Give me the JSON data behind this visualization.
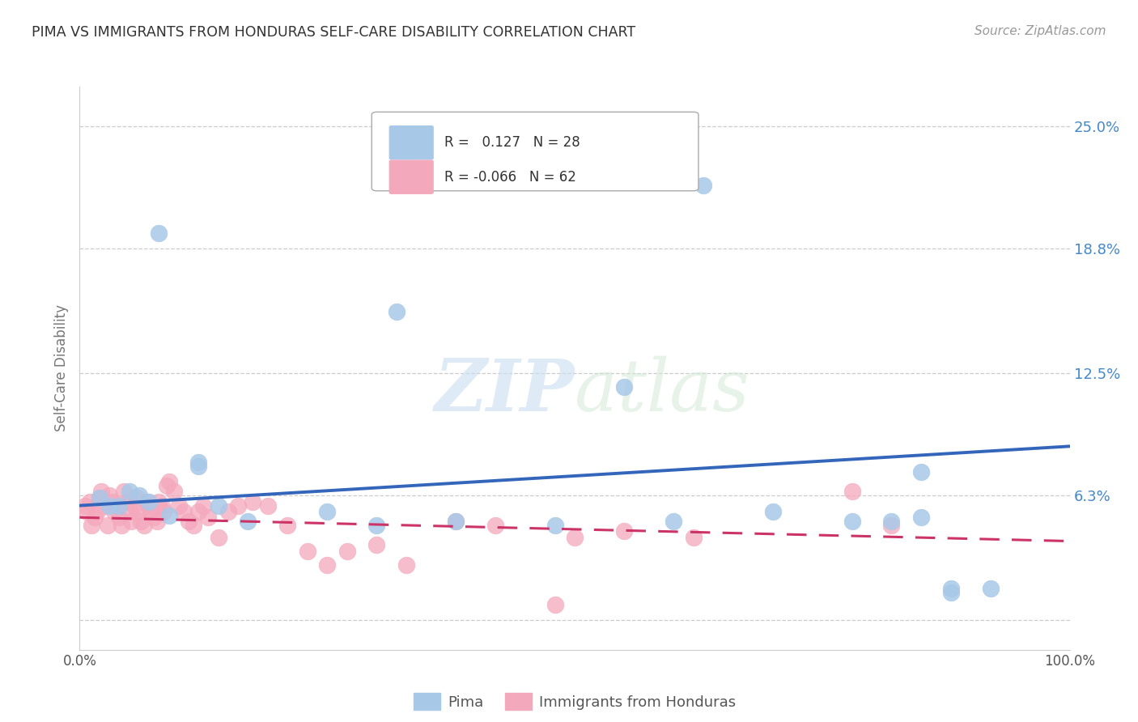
{
  "title": "PIMA VS IMMIGRANTS FROM HONDURAS SELF-CARE DISABILITY CORRELATION CHART",
  "source": "Source: ZipAtlas.com",
  "ylabel": "Self-Care Disability",
  "xlim": [
    0,
    1
  ],
  "ylim": [
    -0.015,
    0.27
  ],
  "yticks": [
    0.0,
    0.063,
    0.125,
    0.188,
    0.25
  ],
  "ytick_labels": [
    "",
    "6.3%",
    "12.5%",
    "18.8%",
    "25.0%"
  ],
  "pima_color": "#a8c8e8",
  "pima_edge_color": "#a8c8e8",
  "honduras_color": "#f4a8bc",
  "honduras_edge_color": "#f4a8bc",
  "pima_line_color": "#3366bb",
  "honduras_line_color": "#cc3366",
  "watermark": "ZIPatlas",
  "pima_scatter_x": [
    0.08,
    0.63,
    0.32,
    0.12,
    0.12,
    0.06,
    0.05,
    0.07,
    0.04,
    0.09,
    0.14,
    0.02,
    0.03,
    0.48,
    0.7,
    0.78,
    0.82,
    0.85,
    0.88,
    0.3,
    0.38,
    0.55,
    0.6,
    0.85,
    0.88,
    0.92,
    0.17,
    0.25
  ],
  "pima_scatter_y": [
    0.196,
    0.22,
    0.156,
    0.08,
    0.078,
    0.063,
    0.065,
    0.06,
    0.058,
    0.053,
    0.058,
    0.062,
    0.058,
    0.048,
    0.055,
    0.05,
    0.05,
    0.052,
    0.014,
    0.048,
    0.05,
    0.118,
    0.05,
    0.075,
    0.016,
    0.016,
    0.05,
    0.055
  ],
  "honduras_scatter_x": [
    0.005,
    0.007,
    0.01,
    0.012,
    0.015,
    0.018,
    0.02,
    0.022,
    0.025,
    0.028,
    0.03,
    0.033,
    0.035,
    0.038,
    0.04,
    0.042,
    0.045,
    0.048,
    0.05,
    0.052,
    0.055,
    0.058,
    0.06,
    0.062,
    0.065,
    0.068,
    0.07,
    0.072,
    0.075,
    0.078,
    0.08,
    0.083,
    0.085,
    0.088,
    0.09,
    0.095,
    0.1,
    0.105,
    0.11,
    0.115,
    0.12,
    0.125,
    0.13,
    0.14,
    0.15,
    0.16,
    0.175,
    0.19,
    0.21,
    0.23,
    0.25,
    0.27,
    0.3,
    0.33,
    0.38,
    0.42,
    0.48,
    0.5,
    0.55,
    0.62,
    0.78,
    0.82
  ],
  "honduras_scatter_y": [
    0.058,
    0.055,
    0.06,
    0.048,
    0.052,
    0.055,
    0.062,
    0.065,
    0.058,
    0.048,
    0.063,
    0.06,
    0.055,
    0.058,
    0.052,
    0.048,
    0.065,
    0.06,
    0.055,
    0.05,
    0.058,
    0.062,
    0.055,
    0.05,
    0.048,
    0.06,
    0.058,
    0.055,
    0.052,
    0.05,
    0.06,
    0.058,
    0.055,
    0.068,
    0.07,
    0.065,
    0.058,
    0.055,
    0.05,
    0.048,
    0.055,
    0.058,
    0.052,
    0.042,
    0.055,
    0.058,
    0.06,
    0.058,
    0.048,
    0.035,
    0.028,
    0.035,
    0.038,
    0.028,
    0.05,
    0.048,
    0.008,
    0.042,
    0.045,
    0.042,
    0.065,
    0.048
  ],
  "pima_trend_x": [
    0.0,
    1.0
  ],
  "pima_trend_y": [
    0.058,
    0.088
  ],
  "honduras_trend_x": [
    0.0,
    1.0
  ],
  "honduras_trend_y": [
    0.052,
    0.04
  ],
  "background_color": "#ffffff",
  "grid_color": "#cccccc",
  "title_color": "#333333",
  "axis_label_color": "#777777",
  "right_tick_color": "#4488cc",
  "legend_R1": "R =",
  "legend_V1": "  0.127",
  "legend_N1": "N = 28",
  "legend_R2": "R = -0.066",
  "legend_V2": "-0.066",
  "legend_N2": "N = 62"
}
